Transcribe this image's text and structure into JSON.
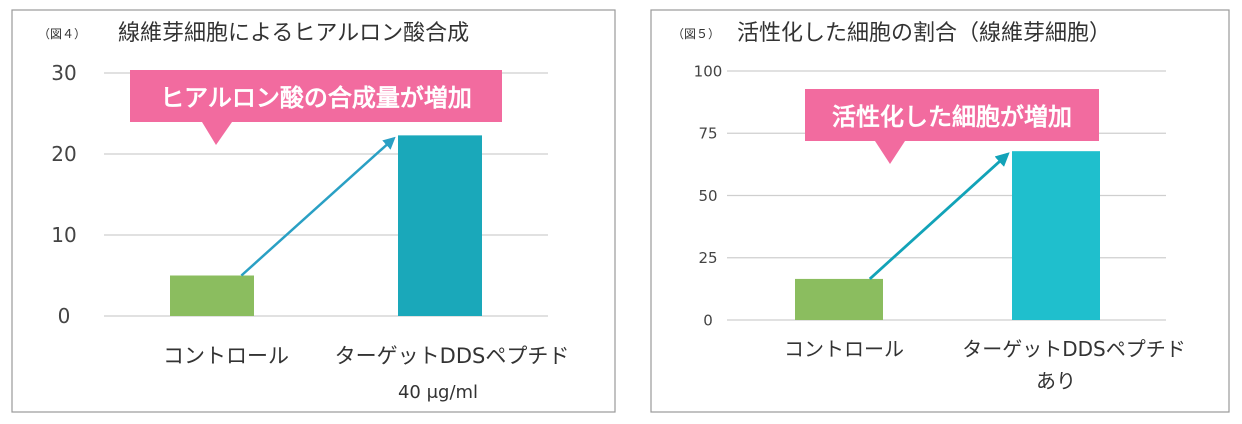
{
  "chart_data": [
    {
      "type": "bar",
      "figure_label": "（図４）",
      "title": "線維芽細胞によるヒアルロン酸合成",
      "categories": [
        "コントロール",
        "ターゲットDDSペプチド"
      ],
      "category_sublabels": [
        "",
        "40 μg/ml"
      ],
      "values": [
        5,
        22.3
      ],
      "ylim": [
        0,
        30
      ],
      "yticks": [
        "0",
        "10",
        "20",
        "30"
      ],
      "ytick_values": [
        0,
        10,
        20,
        30
      ],
      "xlabel": "",
      "ylabel": "",
      "grid": true,
      "callout": "ヒアルロン酸の合成量が増加",
      "colors": {
        "bars": [
          "#8bbd5f",
          "#1aa8ba"
        ],
        "callout": "#f26b9f",
        "arrow": "#2aa0c4"
      }
    },
    {
      "type": "bar",
      "figure_label": "（図５）",
      "title": "活性化した細胞の割合（線維芽細胞）",
      "categories": [
        "コントロール",
        "ターゲットDDSペプチド"
      ],
      "category_sublabels": [
        "",
        "あり"
      ],
      "values": [
        16.5,
        67.8
      ],
      "ylim": [
        0,
        100
      ],
      "yticks": [
        "0",
        "25",
        "50",
        "75",
        "100"
      ],
      "ytick_values": [
        0,
        25,
        50,
        75,
        100
      ],
      "xlabel": "",
      "ylabel": "",
      "grid": true,
      "callout": "活性化した細胞が増加",
      "colors": {
        "bars": [
          "#8bbd5f",
          "#1fbfcd"
        ],
        "callout": "#f26b9f",
        "arrow": "#12a3b8"
      }
    }
  ]
}
